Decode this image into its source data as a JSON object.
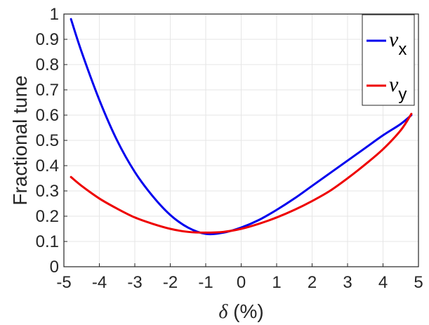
{
  "chart_data": {
    "type": "line",
    "xlabel": "δ (%)",
    "ylabel": "Fractional tune",
    "xlim": [
      -5,
      5
    ],
    "ylim": [
      0,
      1
    ],
    "xticks": [
      "-5",
      "-4",
      "-3",
      "-2",
      "-1",
      "0",
      "1",
      "2",
      "3",
      "4",
      "5"
    ],
    "yticks": [
      "0",
      "0.1",
      "0.2",
      "0.3",
      "0.4",
      "0.5",
      "0.6",
      "0.7",
      "0.8",
      "0.9",
      "1"
    ],
    "grid": true,
    "legend_position": "top-right",
    "series": [
      {
        "name": "νx",
        "legend_symbol": "ν",
        "legend_subscript": "x",
        "color": "#0000ee",
        "x": [
          -4.8,
          -4.5,
          -4.0,
          -3.5,
          -3.0,
          -2.5,
          -2.0,
          -1.5,
          -1.0,
          -0.5,
          0.0,
          0.5,
          1.0,
          1.5,
          2.0,
          2.5,
          3.0,
          3.5,
          4.0,
          4.5,
          4.8
        ],
        "y": [
          0.98,
          0.85,
          0.66,
          0.5,
          0.375,
          0.28,
          0.205,
          0.155,
          0.13,
          0.135,
          0.155,
          0.185,
          0.225,
          0.27,
          0.32,
          0.37,
          0.42,
          0.47,
          0.52,
          0.565,
          0.6
        ]
      },
      {
        "name": "νy",
        "legend_symbol": "ν",
        "legend_subscript": "y",
        "color": "#ee0000",
        "x": [
          -4.8,
          -4.5,
          -4.0,
          -3.5,
          -3.0,
          -2.5,
          -2.0,
          -1.5,
          -1.0,
          -0.5,
          0.0,
          0.5,
          1.0,
          1.5,
          2.0,
          2.5,
          3.0,
          3.5,
          4.0,
          4.5,
          4.8
        ],
        "y": [
          0.355,
          0.32,
          0.27,
          0.23,
          0.195,
          0.17,
          0.15,
          0.138,
          0.135,
          0.138,
          0.15,
          0.17,
          0.195,
          0.225,
          0.26,
          0.3,
          0.35,
          0.405,
          0.465,
          0.54,
          0.605
        ]
      }
    ]
  }
}
